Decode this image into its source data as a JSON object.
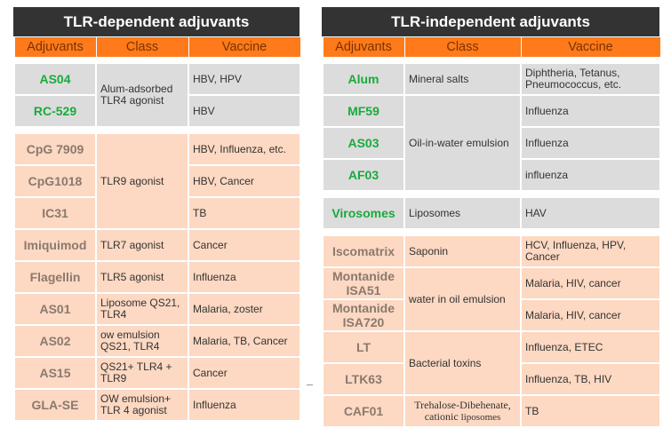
{
  "left": {
    "title": "TLR-dependent adjuvants",
    "headers": [
      "Adjuvants",
      "Class",
      "Vaccine"
    ],
    "rows": [
      {
        "adjuvant": "AS04",
        "class": "Alum-adsorbed TLR4 agonist",
        "vaccine": "HBV, HPV"
      },
      {
        "adjuvant": "RC-529",
        "vaccine": "HBV"
      },
      {
        "adjuvant": "CpG 7909",
        "class": "TLR9 agonist",
        "vaccine": "HBV, Influenza, etc."
      },
      {
        "adjuvant": "CpG1018",
        "vaccine": "HBV, Cancer"
      },
      {
        "adjuvant": "IC31",
        "vaccine": "TB"
      },
      {
        "adjuvant": "Imiquimod",
        "class": "TLR7 agonist",
        "vaccine": "Cancer"
      },
      {
        "adjuvant": "Flagellin",
        "class": "TLR5 agonist",
        "vaccine": "Influenza"
      },
      {
        "adjuvant": "AS01",
        "class": "Liposome QS21, TLR4",
        "vaccine": "Malaria, zoster"
      },
      {
        "adjuvant": "AS02",
        "class": "ow emulsion QS21, TLR4",
        "vaccine": "Malaria, TB, Cancer"
      },
      {
        "adjuvant": "AS15",
        "class": "QS21+ TLR4 + TLR9",
        "vaccine": "Cancer"
      },
      {
        "adjuvant": "GLA-SE",
        "class": "OW emulsion+ TLR 4 agonist",
        "vaccine": "Influenza"
      }
    ]
  },
  "right": {
    "title": "TLR-independent  adjuvants",
    "headers": [
      "Adjuvants",
      "Class",
      "Vaccine"
    ],
    "rows": [
      {
        "adjuvant": "Alum",
        "class": "Mineral salts",
        "vaccine": "Diphtheria, Tetanus, Pneumococcus, etc."
      },
      {
        "adjuvant": "MF59",
        "class": "Oil-in-water emulsion",
        "vaccine": "Influenza"
      },
      {
        "adjuvant": "AS03",
        "vaccine": "Influenza"
      },
      {
        "adjuvant": "AF03",
        "vaccine": "influenza"
      },
      {
        "adjuvant": "Virosomes",
        "class": "Liposomes",
        "vaccine": "HAV"
      },
      {
        "adjuvant": "Iscomatrix",
        "class": "Saponin",
        "vaccine": "HCV, Influenza, HPV, Cancer"
      },
      {
        "adjuvant": "Montanide ISA51",
        "class": "water in oil emulsion",
        "vaccine": "Malaria, HIV, cancer"
      },
      {
        "adjuvant": "Montanide ISA720",
        "vaccine": "Malaria, HIV, cancer"
      },
      {
        "adjuvant": "LT",
        "class": "Bacterial toxins",
        "vaccine": "Influenza, ETEC"
      },
      {
        "adjuvant": "LTK63",
        "vaccine": "Influenza, TB, HIV"
      },
      {
        "adjuvant": "CAF01",
        "class_line1": "Trehalose-Dibehenate,",
        "class_line2": "cationic ",
        "class_line2_small": "liposomes",
        "vaccine": "TB"
      }
    ]
  },
  "colors": {
    "title_bg": "#333333",
    "header_bg": "#ff7a1a",
    "header_text": "#7a3300",
    "gray_row": "#dcdcdc",
    "peach_row": "#fdd8c2",
    "green_text": "#1aaa3c",
    "brown_text": "#8a7a6e"
  }
}
